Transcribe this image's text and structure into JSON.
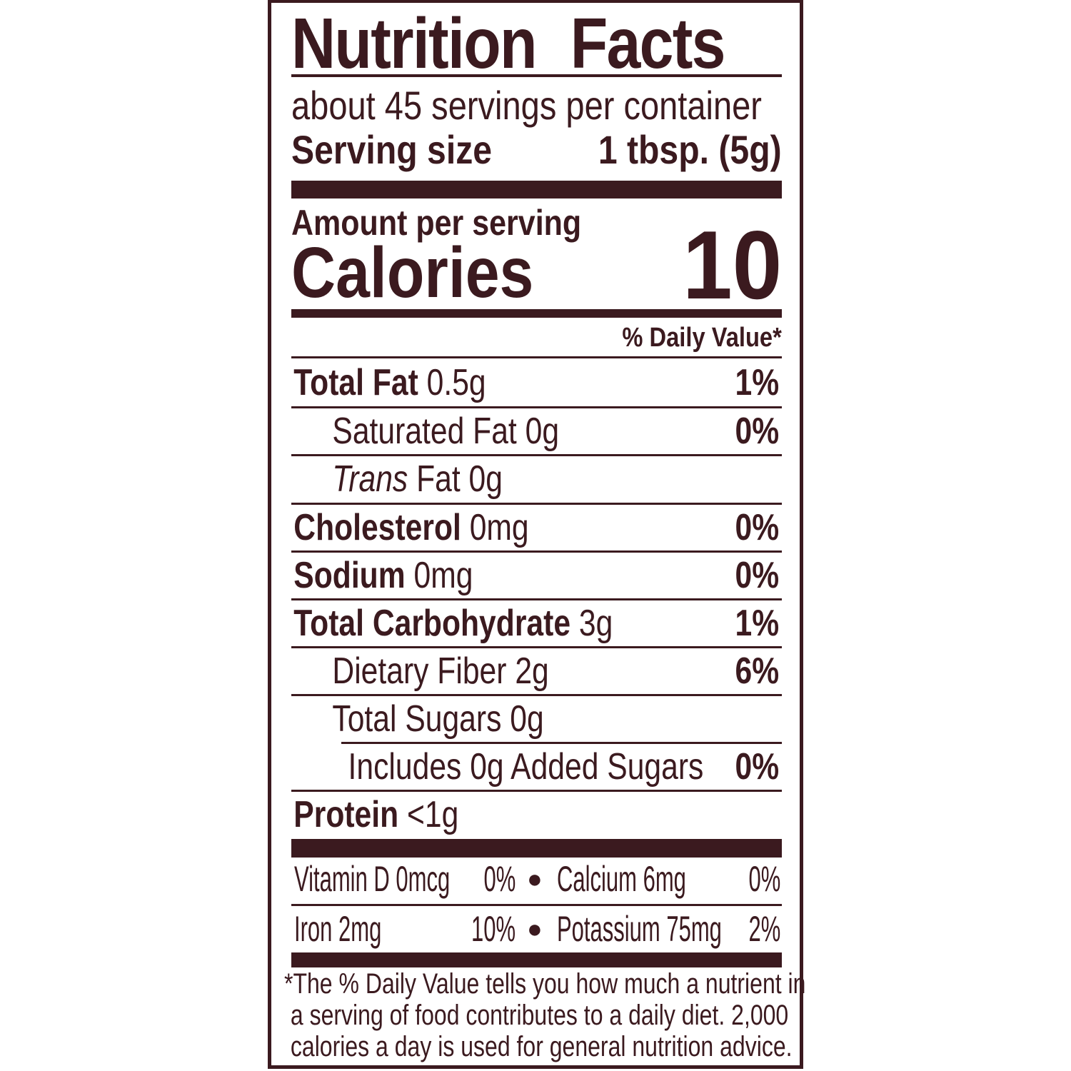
{
  "title": "Nutrition Facts",
  "servings_per_container": "about 45 servings per container",
  "serving_size": {
    "label": "Serving size",
    "value": "1 tbsp. (5g)"
  },
  "amount_per_serving": "Amount per serving",
  "calories": {
    "label": "Calories",
    "value": "10"
  },
  "daily_value_header": "% Daily Value*",
  "nutrients": [
    {
      "name": "Total Fat",
      "amount": "0.5g",
      "dv": "1%"
    },
    {
      "name": "Saturated Fat",
      "amount": "0g",
      "dv": "0%"
    },
    {
      "name": "Trans",
      "name_suffix": "Fat",
      "amount": "0g",
      "dv": ""
    },
    {
      "name": "Cholesterol",
      "amount": "0mg",
      "dv": "0%"
    },
    {
      "name": "Sodium",
      "amount": "0mg",
      "dv": "0%"
    },
    {
      "name": "Total Carbohydrate",
      "amount": "3g",
      "dv": "1%"
    },
    {
      "name": "Dietary Fiber",
      "amount": "2g",
      "dv": "6%"
    },
    {
      "name": "Total Sugars",
      "amount": "0g",
      "dv": ""
    },
    {
      "name": "Includes 0g Added Sugars",
      "amount": "",
      "dv": "0%"
    },
    {
      "name": "Protein",
      "amount": "<1g",
      "dv": ""
    }
  ],
  "micronutrients": [
    {
      "name": "Vitamin D 0mcg",
      "dv": "0%"
    },
    {
      "name": "Calcium 6mg",
      "dv": "0%"
    },
    {
      "name": "Iron 2mg",
      "dv": "10%"
    },
    {
      "name": "Potassium 75mg",
      "dv": "2%"
    }
  ],
  "bullet": "●",
  "footnote": [
    "*The % Daily Value tells you how much a nutrient in",
    " a serving of food contributes to a daily diet. 2,000",
    " calories a day is used for general nutrition advice."
  ],
  "colors": {
    "ink": "#3b1a1f",
    "background": "#ffffff"
  }
}
